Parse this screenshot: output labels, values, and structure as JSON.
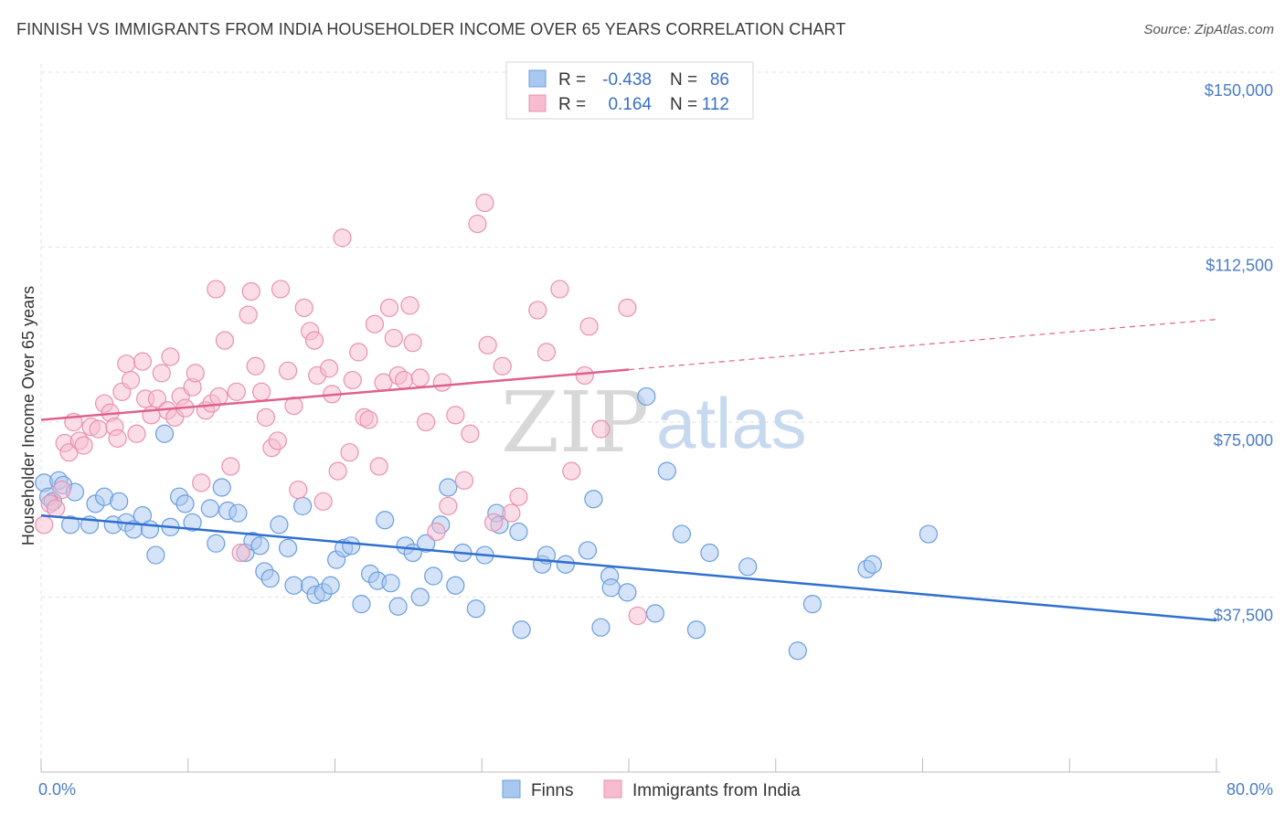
{
  "title": "FINNISH VS IMMIGRANTS FROM INDIA HOUSEHOLDER INCOME OVER 65 YEARS CORRELATION CHART",
  "source": "Source: ZipAtlas.com",
  "colors": {
    "finns_fill": "#a9c8f0",
    "finns_stroke": "#6a9ee0",
    "finns_line": "#2f6fd0",
    "india_fill": "#f7bcd0",
    "india_stroke": "#e991b0",
    "india_line": "#e0608c",
    "grid": "#e2e2e2",
    "axis_text": "#4a7cc9"
  },
  "watermark": {
    "zip": "ZIP",
    "atlas": "atlas"
  },
  "legend": {
    "finns": {
      "r_label": "R =",
      "r_value": "-0.438",
      "n_label": "N =",
      "n_value": "86"
    },
    "india": {
      "r_label": "R =",
      "r_value": "0.164",
      "n_label": "N =",
      "n_value": "112"
    }
  },
  "bottom_legend": [
    "Finns",
    "Immigrants from India"
  ],
  "chart_data": {
    "type": "scatter",
    "ylabel": "Householder Income Over 65 years",
    "xlim": [
      0,
      80
    ],
    "ylim": [
      0,
      150000
    ],
    "x_tick_labels": [
      "0.0%",
      "80.0%"
    ],
    "y_ticks": [
      {
        "value": 150000,
        "label": "$150,000"
      },
      {
        "value": 112500,
        "label": "$112,500"
      },
      {
        "value": 75000,
        "label": "$75,000"
      },
      {
        "value": 37500,
        "label": "$37,500"
      }
    ],
    "series": [
      {
        "name": "Finns",
        "trend": {
          "x0": 0,
          "y0": 55000,
          "x1": 80,
          "y1": 32500,
          "dashed_from": null
        },
        "points": [
          [
            0.2,
            62000
          ],
          [
            0.5,
            59000
          ],
          [
            0.8,
            58000
          ],
          [
            1.2,
            62500
          ],
          [
            1.5,
            61500
          ],
          [
            2,
            53000
          ],
          [
            2.3,
            60000
          ],
          [
            3.3,
            53000
          ],
          [
            3.7,
            57500
          ],
          [
            4.3,
            59000
          ],
          [
            4.9,
            53000
          ],
          [
            5.3,
            58000
          ],
          [
            5.8,
            53500
          ],
          [
            6.3,
            52000
          ],
          [
            6.9,
            55000
          ],
          [
            7.4,
            52000
          ],
          [
            7.8,
            46500
          ],
          [
            8.4,
            72500
          ],
          [
            8.8,
            52500
          ],
          [
            9.4,
            59000
          ],
          [
            9.8,
            57500
          ],
          [
            10.3,
            53500
          ],
          [
            11.5,
            56500
          ],
          [
            11.9,
            49000
          ],
          [
            12.3,
            61000
          ],
          [
            12.7,
            56000
          ],
          [
            13.4,
            55500
          ],
          [
            13.9,
            47000
          ],
          [
            14.4,
            49500
          ],
          [
            14.9,
            48500
          ],
          [
            15.2,
            43000
          ],
          [
            15.6,
            41500
          ],
          [
            16.2,
            53000
          ],
          [
            16.8,
            48000
          ],
          [
            17.2,
            40000
          ],
          [
            17.8,
            57000
          ],
          [
            18.3,
            40000
          ],
          [
            18.7,
            38000
          ],
          [
            19.2,
            38500
          ],
          [
            19.7,
            40000
          ],
          [
            20.1,
            45500
          ],
          [
            20.6,
            48000
          ],
          [
            21.1,
            48500
          ],
          [
            21.8,
            36000
          ],
          [
            22.4,
            42500
          ],
          [
            22.9,
            41000
          ],
          [
            23.4,
            54000
          ],
          [
            23.8,
            40500
          ],
          [
            24.3,
            35500
          ],
          [
            24.8,
            48500
          ],
          [
            25.3,
            47000
          ],
          [
            25.8,
            37500
          ],
          [
            26.2,
            49000
          ],
          [
            26.7,
            42000
          ],
          [
            27.2,
            53000
          ],
          [
            27.7,
            61000
          ],
          [
            28.2,
            40000
          ],
          [
            28.7,
            47000
          ],
          [
            29.6,
            35000
          ],
          [
            30.2,
            46500
          ],
          [
            31,
            55500
          ],
          [
            31.2,
            53000
          ],
          [
            32.5,
            51500
          ],
          [
            32.7,
            30500
          ],
          [
            34.1,
            44500
          ],
          [
            34.4,
            46500
          ],
          [
            35.7,
            44500
          ],
          [
            37.2,
            47500
          ],
          [
            37.6,
            58500
          ],
          [
            38.1,
            31000
          ],
          [
            38.7,
            42000
          ],
          [
            38.8,
            39500
          ],
          [
            39.9,
            38500
          ],
          [
            41.2,
            80500
          ],
          [
            41.8,
            34000
          ],
          [
            42.6,
            64500
          ],
          [
            43.6,
            51000
          ],
          [
            44.6,
            30500
          ],
          [
            45.5,
            47000
          ],
          [
            48.1,
            44000
          ],
          [
            51.5,
            26000
          ],
          [
            52.5,
            36000
          ],
          [
            56.2,
            43500
          ],
          [
            56.6,
            44500
          ],
          [
            60.4,
            51000
          ]
        ]
      },
      {
        "name": "Immigrants from India",
        "trend": {
          "x0": 0,
          "y0": 75500,
          "x1": 80,
          "y1": 97000,
          "dashed_from": 40
        },
        "points": [
          [
            0.2,
            53000
          ],
          [
            0.6,
            57500
          ],
          [
            1,
            56500
          ],
          [
            1.4,
            60500
          ],
          [
            1.6,
            70500
          ],
          [
            1.9,
            68500
          ],
          [
            2.2,
            75000
          ],
          [
            2.6,
            71000
          ],
          [
            2.9,
            70000
          ],
          [
            3.4,
            74000
          ],
          [
            3.9,
            73500
          ],
          [
            4.3,
            79000
          ],
          [
            4.7,
            77000
          ],
          [
            5,
            74000
          ],
          [
            5.2,
            71500
          ],
          [
            5.5,
            81500
          ],
          [
            5.8,
            87500
          ],
          [
            6.1,
            84000
          ],
          [
            6.5,
            72500
          ],
          [
            6.9,
            88000
          ],
          [
            7.1,
            80000
          ],
          [
            7.5,
            76500
          ],
          [
            7.9,
            80000
          ],
          [
            8.2,
            85500
          ],
          [
            8.6,
            77500
          ],
          [
            8.8,
            89000
          ],
          [
            9.1,
            76000
          ],
          [
            9.5,
            80500
          ],
          [
            9.8,
            78000
          ],
          [
            10.3,
            82500
          ],
          [
            10.5,
            85500
          ],
          [
            10.9,
            62000
          ],
          [
            11.2,
            77500
          ],
          [
            11.6,
            79000
          ],
          [
            11.9,
            103500
          ],
          [
            12.1,
            80500
          ],
          [
            12.5,
            92500
          ],
          [
            12.9,
            65500
          ],
          [
            13.3,
            81500
          ],
          [
            13.6,
            47000
          ],
          [
            14.1,
            98000
          ],
          [
            14.3,
            103000
          ],
          [
            14.6,
            87000
          ],
          [
            15,
            81500
          ],
          [
            15.3,
            76000
          ],
          [
            15.7,
            69500
          ],
          [
            16.1,
            71000
          ],
          [
            16.3,
            103500
          ],
          [
            16.8,
            86000
          ],
          [
            17.2,
            78500
          ],
          [
            17.5,
            60500
          ],
          [
            17.9,
            99500
          ],
          [
            18.3,
            94500
          ],
          [
            18.6,
            92500
          ],
          [
            18.8,
            85000
          ],
          [
            19.2,
            58000
          ],
          [
            19.6,
            86500
          ],
          [
            19.8,
            81000
          ],
          [
            20.2,
            64500
          ],
          [
            20.5,
            114500
          ],
          [
            21,
            68500
          ],
          [
            21.2,
            84000
          ],
          [
            21.6,
            90000
          ],
          [
            22,
            76000
          ],
          [
            22.3,
            75500
          ],
          [
            22.7,
            96000
          ],
          [
            23,
            65500
          ],
          [
            23.3,
            83500
          ],
          [
            23.7,
            99500
          ],
          [
            24,
            93000
          ],
          [
            24.3,
            85000
          ],
          [
            24.7,
            84000
          ],
          [
            25.1,
            100000
          ],
          [
            25.3,
            92000
          ],
          [
            25.8,
            84500
          ],
          [
            26.2,
            75000
          ],
          [
            26.9,
            51500
          ],
          [
            27.3,
            83500
          ],
          [
            27.7,
            57000
          ],
          [
            28.2,
            76500
          ],
          [
            28.8,
            62500
          ],
          [
            29.2,
            72500
          ],
          [
            29.7,
            117500
          ],
          [
            30.2,
            122000
          ],
          [
            30.4,
            91500
          ],
          [
            30.8,
            53500
          ],
          [
            31.4,
            87000
          ],
          [
            32,
            55500
          ],
          [
            32.5,
            59000
          ],
          [
            33.8,
            99000
          ],
          [
            34.4,
            90000
          ],
          [
            35.3,
            103500
          ],
          [
            36.1,
            64500
          ],
          [
            37,
            85000
          ],
          [
            37.3,
            95500
          ],
          [
            38.1,
            73500
          ],
          [
            39.9,
            99500
          ],
          [
            40.6,
            33500
          ]
        ]
      }
    ]
  }
}
